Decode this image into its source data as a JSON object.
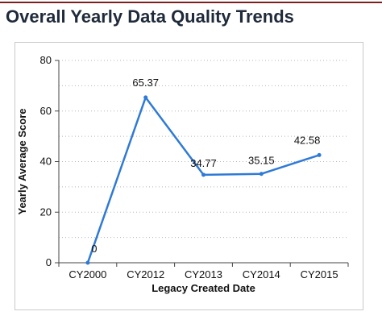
{
  "header": {
    "title": "Overall Yearly Data Quality Trends"
  },
  "chart_data": {
    "type": "line",
    "categories": [
      "CY2000",
      "CY2012",
      "CY2013",
      "CY2014",
      "CY2015"
    ],
    "series": [
      {
        "values": [
          0,
          65.37,
          34.77,
          35.15,
          42.58
        ]
      }
    ],
    "data_labels": [
      "0",
      "65.37",
      "34.77",
      "35.15",
      "42.58"
    ],
    "xlabel": "Legacy Created Date",
    "ylabel": "Yearly Average Score",
    "ylim": [
      0,
      80
    ],
    "yticks": [
      0,
      20,
      40,
      60,
      80
    ],
    "grid": "horizontal-dotted",
    "legend": "none",
    "line_color": "#2f7ad6"
  }
}
